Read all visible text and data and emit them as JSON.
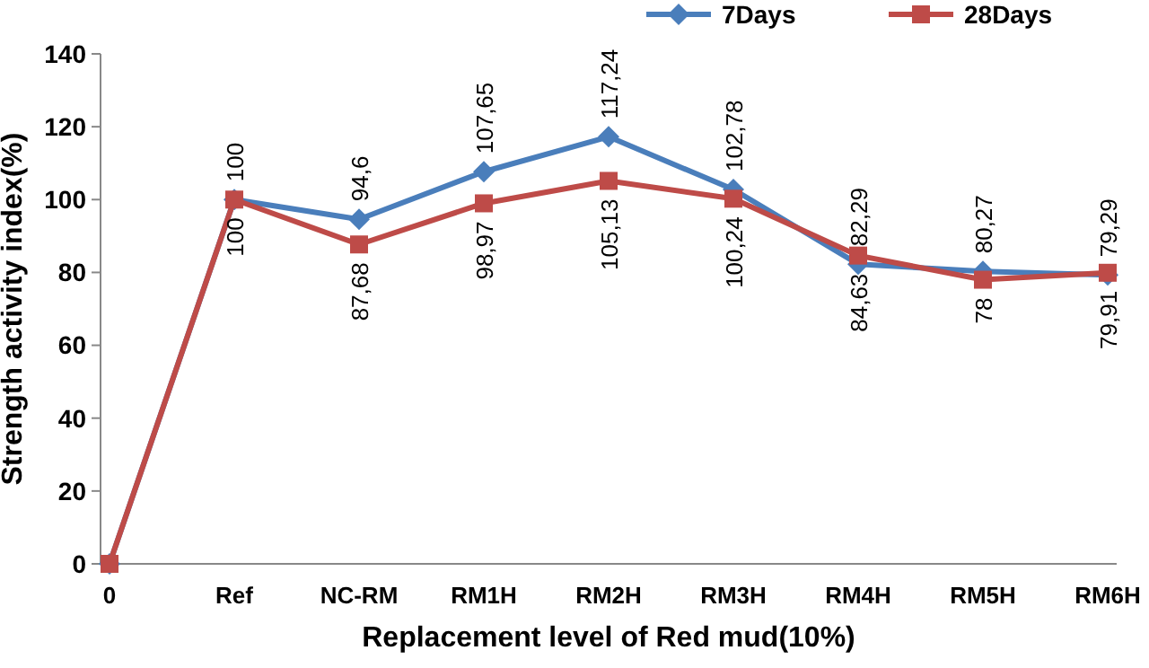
{
  "chart_data": {
    "type": "line",
    "xlabel": "Replacement level of Red mud(10%)",
    "ylabel": "Strength activity index(%)",
    "categories": [
      "0",
      "Ref",
      "NC-RM",
      "RM1H",
      "RM2H",
      "RM3H",
      "RM4H",
      "RM5H",
      "RM6H"
    ],
    "ylim": [
      0,
      140
    ],
    "yticks": [
      0,
      20,
      40,
      60,
      80,
      100,
      120,
      140
    ],
    "grid": false,
    "legend": "top right",
    "series": [
      {
        "name": "7Days",
        "color": "#4a7ebb",
        "marker": "diamond",
        "values": [
          0,
          100,
          94.6,
          107.65,
          117.24,
          102.78,
          82.29,
          80.27,
          79.29
        ],
        "value_labels": [
          null,
          "100",
          "94,6",
          "107,65",
          "117,24",
          "102,78",
          "82,29",
          "80,27",
          "79,29"
        ]
      },
      {
        "name": "28Days",
        "color": "#be4b48",
        "marker": "square",
        "values": [
          0,
          100,
          87.68,
          98.97,
          105.13,
          100.24,
          84.63,
          78,
          79.91
        ],
        "value_labels": [
          null,
          "100",
          "87,68",
          "98,97",
          "105,13",
          "100,24",
          "84,63",
          "78",
          "79,91"
        ]
      }
    ]
  }
}
